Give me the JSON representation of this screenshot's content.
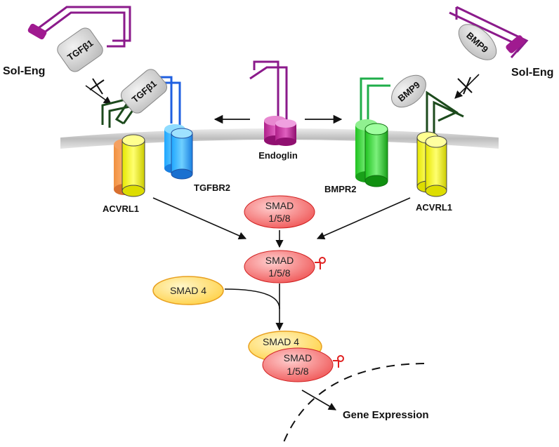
{
  "labels": {
    "sol_eng_left": "Sol-Eng",
    "sol_eng_right": "Sol-Eng",
    "tgfb1_free": "TGFβ1",
    "tgfb1_bound": "TGFβ1",
    "bmp9_free": "BMP9",
    "bmp9_bound": "BMP9",
    "endoglin": "Endoglin",
    "tgfbr2": "TGFBR2",
    "bmpr2": "BMPR2",
    "acvrl1_left": "ACVRL1",
    "acvrl1_right": "ACVRL1",
    "gene_expression": "Gene Expression"
  },
  "smads": {
    "smad158_top": [
      "SMAD",
      "1/5/8"
    ],
    "smad158_phos": [
      "SMAD",
      "1/5/8"
    ],
    "smad4_free": "SMAD 4",
    "smad4_complex": "SMAD 4",
    "smad158_complex": [
      "SMAD",
      "1/5/8"
    ]
  },
  "colors": {
    "purple": "#8b1a8b",
    "dark_green": "#1c4a1c",
    "blue": "#1f5fe0",
    "bright_green": "#1fae4a",
    "red": "#e02020",
    "smad_fill": "#f47a7a",
    "smad4_fill": "#ffe27a",
    "smad4_stroke": "#e8a020",
    "membrane": "#cfcfcf"
  }
}
